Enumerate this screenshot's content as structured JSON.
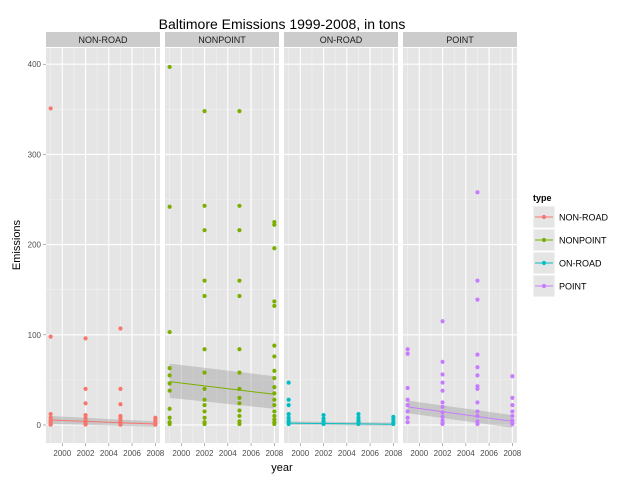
{
  "chart_data": {
    "type": "scatter",
    "title": "Baltimore Emissions 1999-2008, in tons",
    "xlabel": "year",
    "ylabel": "Emissions",
    "xlim": [
      1998.6,
      2008.4
    ],
    "ylim": [
      -20,
      418
    ],
    "x_ticks": [
      2000,
      2002,
      2004,
      2006,
      2008
    ],
    "y_ticks": [
      0,
      100,
      200,
      300,
      400
    ],
    "grid": true,
    "facet_by": "type",
    "legend": {
      "title": "type",
      "position": "right"
    },
    "panels": [
      {
        "name": "NON-ROAD",
        "color": "#F8766D",
        "points": [
          [
            1999,
            351
          ],
          [
            1999,
            98
          ],
          [
            1999,
            12
          ],
          [
            1999,
            8
          ],
          [
            1999,
            5
          ],
          [
            1999,
            3
          ],
          [
            1999,
            1
          ],
          [
            1999,
            0.3
          ],
          [
            2002,
            96
          ],
          [
            2002,
            40
          ],
          [
            2002,
            24
          ],
          [
            2002,
            11
          ],
          [
            2002,
            8
          ],
          [
            2002,
            5
          ],
          [
            2002,
            3
          ],
          [
            2002,
            1
          ],
          [
            2002,
            0.5
          ],
          [
            2005,
            107
          ],
          [
            2005,
            40
          ],
          [
            2005,
            23
          ],
          [
            2005,
            10
          ],
          [
            2005,
            7
          ],
          [
            2005,
            4
          ],
          [
            2005,
            2
          ],
          [
            2005,
            1
          ],
          [
            2005,
            0.3
          ],
          [
            2008,
            8
          ],
          [
            2008,
            6
          ],
          [
            2008,
            4
          ],
          [
            2008,
            2
          ],
          [
            2008,
            1
          ],
          [
            2008,
            0.3
          ]
        ],
        "trend": {
          "x": [
            1999,
            2008
          ],
          "y": [
            5.5,
            1.0
          ],
          "band_lower": [
            1.0,
            -2.0
          ],
          "band_upper": [
            10.0,
            4.0
          ]
        }
      },
      {
        "name": "NONPOINT",
        "color": "#7CAE00",
        "points": [
          [
            1999,
            397
          ],
          [
            1999,
            242
          ],
          [
            1999,
            103
          ],
          [
            1999,
            63
          ],
          [
            1999,
            55
          ],
          [
            1999,
            46
          ],
          [
            1999,
            38
          ],
          [
            1999,
            18
          ],
          [
            1999,
            8
          ],
          [
            1999,
            3
          ],
          [
            1999,
            1
          ],
          [
            2002,
            348
          ],
          [
            2002,
            243
          ],
          [
            2002,
            216
          ],
          [
            2002,
            160
          ],
          [
            2002,
            143
          ],
          [
            2002,
            84
          ],
          [
            2002,
            58
          ],
          [
            2002,
            40
          ],
          [
            2002,
            28
          ],
          [
            2002,
            22
          ],
          [
            2002,
            15
          ],
          [
            2002,
            8
          ],
          [
            2002,
            3
          ],
          [
            2002,
            1
          ],
          [
            2005,
            348
          ],
          [
            2005,
            243
          ],
          [
            2005,
            216
          ],
          [
            2005,
            160
          ],
          [
            2005,
            143
          ],
          [
            2005,
            84
          ],
          [
            2005,
            58
          ],
          [
            2005,
            40
          ],
          [
            2005,
            30
          ],
          [
            2005,
            24
          ],
          [
            2005,
            16
          ],
          [
            2005,
            10
          ],
          [
            2005,
            4
          ],
          [
            2005,
            1
          ],
          [
            2008,
            225
          ],
          [
            2008,
            222
          ],
          [
            2008,
            196
          ],
          [
            2008,
            137
          ],
          [
            2008,
            132
          ],
          [
            2008,
            88
          ],
          [
            2008,
            76
          ],
          [
            2008,
            60
          ],
          [
            2008,
            52
          ],
          [
            2008,
            42
          ],
          [
            2008,
            35
          ],
          [
            2008,
            28
          ],
          [
            2008,
            22
          ],
          [
            2008,
            15
          ],
          [
            2008,
            10
          ],
          [
            2008,
            6
          ],
          [
            2008,
            3
          ],
          [
            2008,
            1
          ]
        ],
        "trend": {
          "x": [
            1999,
            2008
          ],
          "y": [
            48,
            34
          ],
          "band_lower": [
            30,
            18
          ],
          "band_upper": [
            68,
            54
          ]
        }
      },
      {
        "name": "ON-ROAD",
        "color": "#00BFC4",
        "points": [
          [
            1999,
            47
          ],
          [
            1999,
            28
          ],
          [
            1999,
            22
          ],
          [
            1999,
            12
          ],
          [
            1999,
            8
          ],
          [
            1999,
            5
          ],
          [
            1999,
            3
          ],
          [
            1999,
            1
          ],
          [
            2002,
            11
          ],
          [
            2002,
            7
          ],
          [
            2002,
            4
          ],
          [
            2002,
            2
          ],
          [
            2002,
            1
          ],
          [
            2005,
            12
          ],
          [
            2005,
            8
          ],
          [
            2005,
            5
          ],
          [
            2005,
            3
          ],
          [
            2005,
            1
          ],
          [
            2008,
            9
          ],
          [
            2008,
            6
          ],
          [
            2008,
            3
          ],
          [
            2008,
            1
          ]
        ],
        "trend": {
          "x": [
            1999,
            2008
          ],
          "y": [
            2.0,
            0.8
          ],
          "band_lower": [
            0.0,
            -1.0
          ],
          "band_upper": [
            4.0,
            2.6
          ]
        }
      },
      {
        "name": "POINT",
        "color": "#C77CFF",
        "points": [
          [
            1999,
            84
          ],
          [
            1999,
            79
          ],
          [
            1999,
            41
          ],
          [
            1999,
            28
          ],
          [
            1999,
            22
          ],
          [
            1999,
            15
          ],
          [
            1999,
            8
          ],
          [
            1999,
            3
          ],
          [
            2002,
            115
          ],
          [
            2002,
            70
          ],
          [
            2002,
            56
          ],
          [
            2002,
            47
          ],
          [
            2002,
            38
          ],
          [
            2002,
            25
          ],
          [
            2002,
            20
          ],
          [
            2002,
            14
          ],
          [
            2002,
            9
          ],
          [
            2002,
            5
          ],
          [
            2002,
            2
          ],
          [
            2002,
            1
          ],
          [
            2005,
            258
          ],
          [
            2005,
            160
          ],
          [
            2005,
            139
          ],
          [
            2005,
            78
          ],
          [
            2005,
            64
          ],
          [
            2005,
            55
          ],
          [
            2005,
            43
          ],
          [
            2005,
            40
          ],
          [
            2005,
            25
          ],
          [
            2005,
            15
          ],
          [
            2005,
            10
          ],
          [
            2005,
            4
          ],
          [
            2005,
            1
          ],
          [
            2008,
            54
          ],
          [
            2008,
            30
          ],
          [
            2008,
            22
          ],
          [
            2008,
            15
          ],
          [
            2008,
            10
          ],
          [
            2008,
            5
          ],
          [
            2008,
            2
          ],
          [
            2008,
            1
          ]
        ],
        "trend": {
          "x": [
            1999,
            2008
          ],
          "y": [
            20,
            4
          ],
          "band_lower": [
            13,
            -3
          ],
          "band_upper": [
            27,
            11
          ]
        }
      }
    ]
  }
}
